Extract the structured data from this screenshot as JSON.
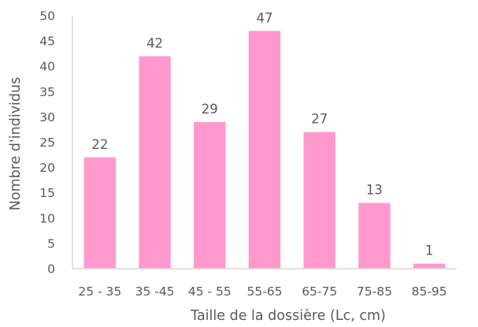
{
  "chart_data": {
    "type": "bar",
    "categories": [
      "25  - 35",
      "35 -45",
      "45 - 55",
      "55-65",
      "65-75",
      "75-85",
      "85-95"
    ],
    "values": [
      22,
      42,
      29,
      47,
      27,
      13,
      1
    ],
    "data_labels": [
      "22",
      "42",
      "29",
      "47",
      "27",
      "13",
      "1"
    ],
    "xlabel": "Taille de la dossière (Lc, cm)",
    "ylabel": "Nombre d'individus",
    "ylim": [
      0,
      50
    ],
    "yticks": [
      "0",
      "5",
      "10",
      "15",
      "20",
      "25",
      "30",
      "35",
      "40",
      "45",
      "50"
    ],
    "bar_color": "#ff99cc",
    "axis_color": "#d9d9d9",
    "text_color": "#595959",
    "grid": false,
    "legend": "none"
  }
}
